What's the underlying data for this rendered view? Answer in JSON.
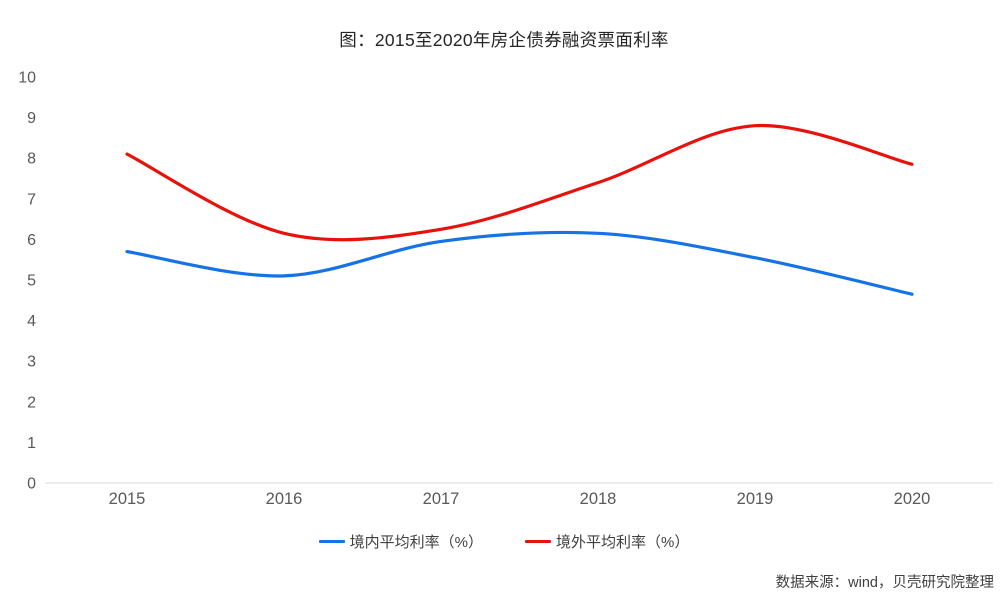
{
  "chart": {
    "source_note": "数据来源：wind，贝壳研究院整理"
  },
  "chart_data": {
    "type": "line",
    "title": "图：2015至2020年房企债券融资票面利率",
    "categories": [
      "2015",
      "2016",
      "2017",
      "2018",
      "2019",
      "2020"
    ],
    "series": [
      {
        "name": "境内平均利率（%）",
        "color": "#1673e6",
        "values": [
          5.7,
          5.1,
          5.95,
          6.15,
          5.55,
          4.65
        ]
      },
      {
        "name": "境外平均利率（%）",
        "color": "#e8120c",
        "values": [
          8.1,
          6.15,
          6.25,
          7.4,
          8.8,
          7.85
        ]
      }
    ],
    "ylim": [
      0,
      10
    ],
    "y_ticks": [
      0,
      1,
      2,
      3,
      4,
      5,
      6,
      7,
      8,
      9,
      10
    ],
    "xlabel": "",
    "ylabel": "",
    "grid": false,
    "smooth": true,
    "legend_position": "bottom",
    "axis_line_color": "#d9d9d9",
    "tick_label_color": "#595959"
  }
}
